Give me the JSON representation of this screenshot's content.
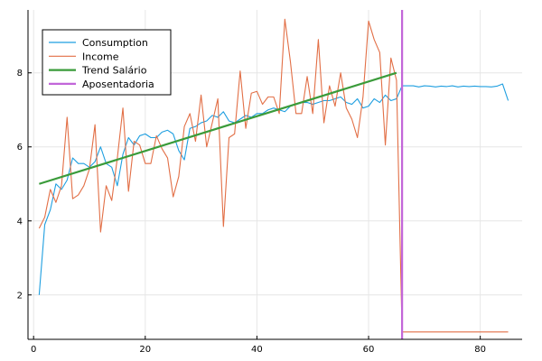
{
  "chart_data": {
    "type": "line",
    "title": "",
    "xlabel": "",
    "ylabel": "",
    "xlim": [
      -1,
      87.5
    ],
    "ylim": [
      0.8,
      9.7
    ],
    "grid": true,
    "legend_position": "top-left",
    "xticks": [
      0,
      20,
      40,
      60,
      80
    ],
    "yticks": [
      2,
      4,
      6,
      8
    ],
    "colors": {
      "consumption": "#1f9fe0",
      "income": "#e26f46",
      "trend": "#3a9b3a",
      "retirement": "#c266d9",
      "grid": "#e6e6e6",
      "axis": "#000000"
    },
    "series": [
      {
        "name": "Consumption",
        "color": "#1f9fe0",
        "x": [
          1,
          2,
          3,
          4,
          5,
          6,
          7,
          8,
          9,
          10,
          11,
          12,
          13,
          14,
          15,
          16,
          17,
          18,
          19,
          20,
          21,
          22,
          23,
          24,
          25,
          26,
          27,
          28,
          29,
          30,
          31,
          32,
          33,
          34,
          35,
          36,
          37,
          38,
          39,
          40,
          41,
          42,
          43,
          44,
          45,
          46,
          47,
          48,
          49,
          50,
          51,
          52,
          53,
          54,
          55,
          56,
          57,
          58,
          59,
          60,
          61,
          62,
          63,
          64,
          65,
          66,
          67,
          68,
          69,
          70,
          71,
          72,
          73,
          74,
          75,
          76,
          77,
          78,
          79,
          80,
          81,
          82,
          83,
          84,
          85
        ],
        "y": [
          2.0,
          3.9,
          4.3,
          5.0,
          4.85,
          5.1,
          5.7,
          5.55,
          5.55,
          5.45,
          5.6,
          6.0,
          5.55,
          5.45,
          4.95,
          5.8,
          6.25,
          6.05,
          6.3,
          6.35,
          6.25,
          6.25,
          6.4,
          6.45,
          6.35,
          5.9,
          5.65,
          6.5,
          6.55,
          6.65,
          6.7,
          6.85,
          6.8,
          6.95,
          6.7,
          6.65,
          6.75,
          6.85,
          6.8,
          6.9,
          6.9,
          7.0,
          7.05,
          7.0,
          6.95,
          7.1,
          7.15,
          7.2,
          7.2,
          7.15,
          7.2,
          7.25,
          7.25,
          7.3,
          7.35,
          7.2,
          7.15,
          7.3,
          7.05,
          7.1,
          7.3,
          7.2,
          7.4,
          7.25,
          7.3,
          7.65,
          7.65,
          7.65,
          7.62,
          7.65,
          7.64,
          7.62,
          7.64,
          7.63,
          7.65,
          7.62,
          7.64,
          7.63,
          7.64,
          7.63,
          7.63,
          7.62,
          7.64,
          7.7,
          7.25
        ]
      },
      {
        "name": "Income",
        "color": "#e26f46",
        "x": [
          1,
          2,
          3,
          4,
          5,
          6,
          7,
          8,
          9,
          10,
          11,
          12,
          13,
          14,
          15,
          16,
          17,
          18,
          19,
          20,
          21,
          22,
          23,
          24,
          25,
          26,
          27,
          28,
          29,
          30,
          31,
          32,
          33,
          34,
          35,
          36,
          37,
          38,
          39,
          40,
          41,
          42,
          43,
          44,
          45,
          46,
          47,
          48,
          49,
          50,
          51,
          52,
          53,
          54,
          55,
          56,
          57,
          58,
          59,
          60,
          61,
          62,
          63,
          64,
          65,
          66,
          67,
          68,
          69,
          70,
          71,
          72,
          73,
          74,
          75,
          76,
          77,
          78,
          79,
          80,
          81,
          82,
          83,
          84,
          85
        ],
        "y": [
          3.8,
          4.1,
          4.85,
          4.5,
          4.95,
          6.8,
          4.6,
          4.7,
          4.95,
          5.4,
          6.6,
          3.7,
          4.95,
          4.55,
          5.7,
          7.05,
          4.8,
          6.15,
          6.05,
          5.55,
          5.55,
          6.3,
          5.95,
          5.7,
          4.65,
          5.2,
          6.55,
          6.9,
          6.15,
          7.4,
          6.0,
          6.65,
          7.3,
          3.85,
          6.25,
          6.35,
          8.05,
          6.5,
          7.45,
          7.5,
          7.15,
          7.35,
          7.35,
          6.9,
          9.45,
          8.3,
          6.9,
          6.9,
          7.9,
          6.9,
          8.9,
          6.65,
          7.65,
          7.1,
          8.0,
          7.05,
          6.75,
          6.25,
          7.35,
          9.4,
          8.9,
          8.55,
          6.05,
          8.4,
          7.8,
          1.0,
          1.0,
          1.0,
          1.0,
          1.0,
          1.0,
          1.0,
          1.0,
          1.0,
          1.0,
          1.0,
          1.0,
          1.0,
          1.0,
          1.0,
          1.0,
          1.0,
          1.0,
          1.0,
          1.0
        ]
      },
      {
        "name": "Trend Salário",
        "color": "#3a9b3a",
        "x": [
          1,
          65
        ],
        "y": [
          5.0,
          8.0
        ]
      },
      {
        "name": "Aposentadoria",
        "color": "#c266d9",
        "vline_x": 66
      }
    ]
  }
}
